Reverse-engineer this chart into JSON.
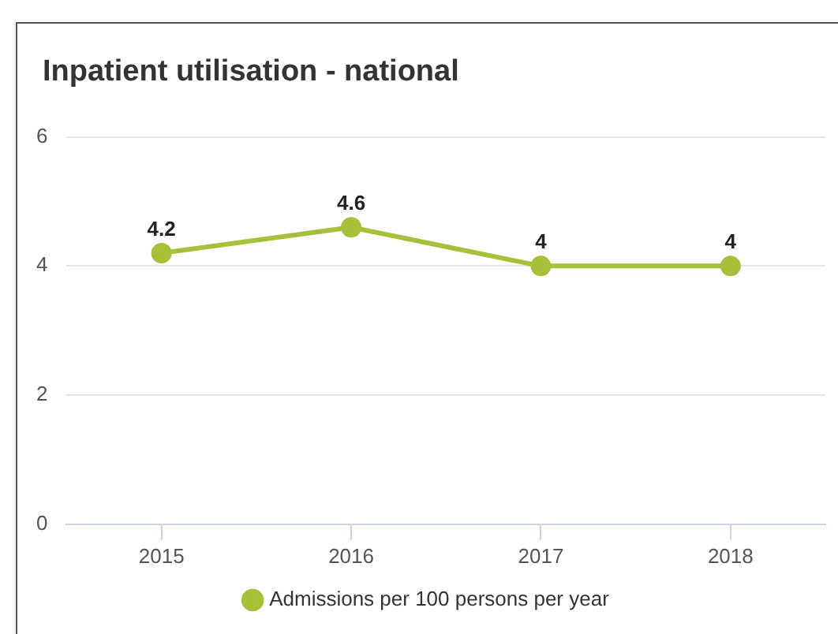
{
  "chart_data": {
    "type": "line",
    "title": "Inpatient utilisation - national",
    "categories": [
      "2015",
      "2016",
      "2017",
      "2018"
    ],
    "series": [
      {
        "name": "Admissions per 100 persons per year",
        "color": "#a5c13a",
        "values": [
          4.2,
          4.6,
          4,
          4
        ]
      }
    ],
    "ylim": [
      0,
      6
    ],
    "yticks": [
      0,
      2,
      4,
      6
    ],
    "grid": "y",
    "legend": "bottom",
    "marker": "circle",
    "data_labels": true
  }
}
